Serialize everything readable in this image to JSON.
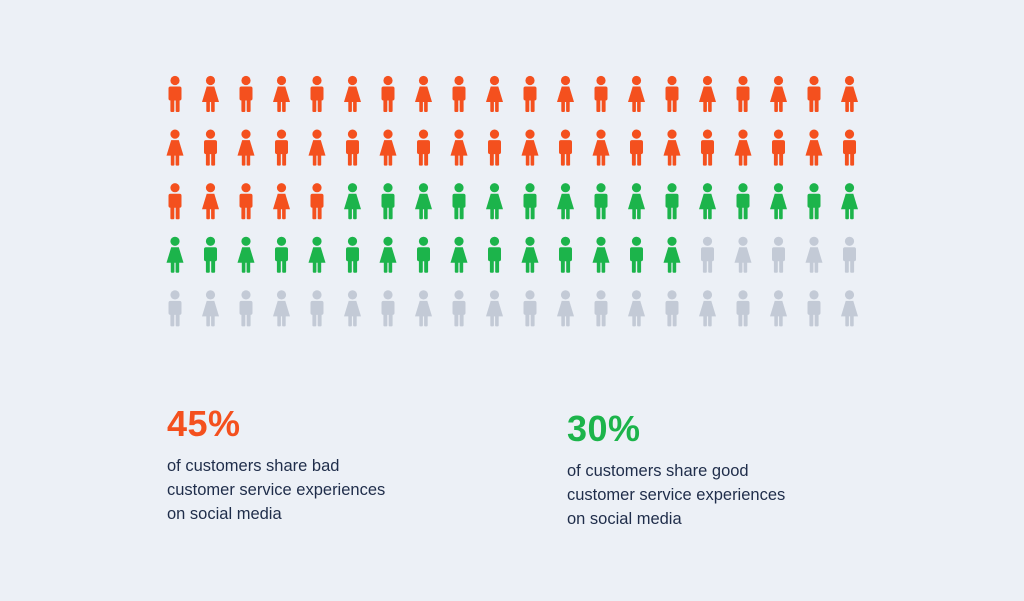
{
  "colors": {
    "background": "#ecf0f6",
    "bad": "#f4501e",
    "good": "#1cb44b",
    "neutral": "#c3cad6",
    "text": "#1f2d4a"
  },
  "chart_data": {
    "type": "pictogram",
    "total": 100,
    "rows": 5,
    "columns": 20,
    "series": [
      {
        "name": "bad",
        "value": 45,
        "color": "#f4501e"
      },
      {
        "name": "good",
        "value": 30,
        "color": "#1cb44b"
      },
      {
        "name": "other",
        "value": 25,
        "color": "#c3cad6"
      }
    ],
    "icon_pattern": "alternating male-icon / female-icon, starting male-icon on even rows, female-icon on odd rows"
  },
  "stats": {
    "bad": {
      "value": "45%",
      "label": "of customers share bad\ncustomer service experiences\non social media"
    },
    "good": {
      "value": "30%",
      "label": "of customers share good\ncustomer service experiences\non social media"
    }
  }
}
